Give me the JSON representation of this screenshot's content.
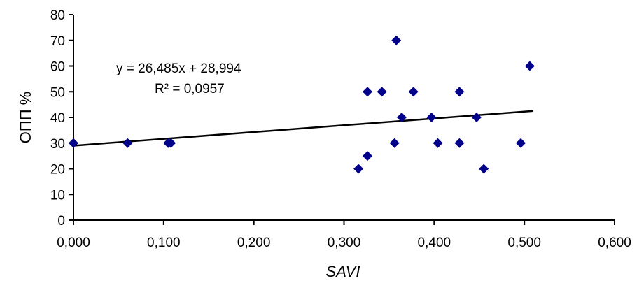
{
  "chart_data": {
    "type": "scatter",
    "xlabel": "SAVI",
    "ylabel": "ОПП %",
    "xlim": [
      0,
      0.6
    ],
    "ylim": [
      0,
      80
    ],
    "x_ticks": [
      "0,000",
      "0,100",
      "0,200",
      "0,300",
      "0,400",
      "0,500",
      "0,600"
    ],
    "y_ticks": [
      "0",
      "10",
      "20",
      "30",
      "40",
      "50",
      "60",
      "70",
      "80"
    ],
    "grid": false,
    "marker_color": "#00008b",
    "points": [
      {
        "x": 0.0,
        "y": 30
      },
      {
        "x": 0.06,
        "y": 30
      },
      {
        "x": 0.105,
        "y": 30
      },
      {
        "x": 0.108,
        "y": 30
      },
      {
        "x": 0.316,
        "y": 20
      },
      {
        "x": 0.326,
        "y": 25
      },
      {
        "x": 0.326,
        "y": 50
      },
      {
        "x": 0.342,
        "y": 50
      },
      {
        "x": 0.356,
        "y": 30
      },
      {
        "x": 0.358,
        "y": 70
      },
      {
        "x": 0.364,
        "y": 40
      },
      {
        "x": 0.377,
        "y": 50
      },
      {
        "x": 0.397,
        "y": 40
      },
      {
        "x": 0.404,
        "y": 30
      },
      {
        "x": 0.428,
        "y": 50
      },
      {
        "x": 0.428,
        "y": 30
      },
      {
        "x": 0.447,
        "y": 40
      },
      {
        "x": 0.455,
        "y": 20
      },
      {
        "x": 0.496,
        "y": 30
      },
      {
        "x": 0.506,
        "y": 60
      }
    ],
    "trendline": {
      "slope": 26.485,
      "intercept": 28.994,
      "x_range": [
        0,
        0.51
      ],
      "equation": "y = 26,485x + 28,994",
      "r2_label": "R² = 0,0957"
    }
  }
}
